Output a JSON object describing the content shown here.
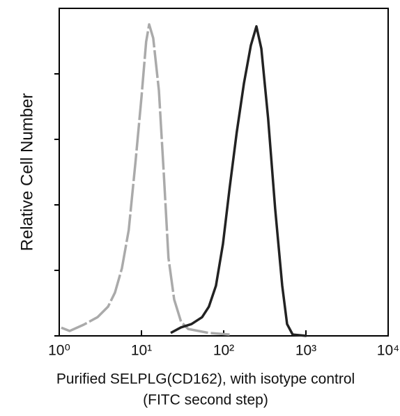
{
  "chart_data": {
    "type": "line",
    "log_x": true,
    "ylabel": "Relative Cell Number",
    "xlabel": [
      "Purified SELPLG(CD162), with isotype control",
      "(FITC second step)"
    ],
    "xlim": [
      1,
      10000
    ],
    "xticks": [
      {
        "value": 1,
        "label": "10⁰"
      },
      {
        "value": 10,
        "label": "10¹"
      },
      {
        "value": 100,
        "label": "10²"
      },
      {
        "value": 1000,
        "label": "10³"
      },
      {
        "value": 10000,
        "label": "10⁴"
      }
    ],
    "ylim": [
      0,
      100
    ],
    "yticks": [
      0,
      20,
      40,
      60,
      80
    ],
    "series": [
      {
        "color": "#aaaaaa",
        "dashed": true,
        "x": [
          1.06,
          1.34,
          1.98,
          2.92,
          3.92,
          4.76,
          5.78,
          7.0,
          8.5,
          10,
          11.4,
          12.4,
          13.9,
          16.3,
          18.7,
          21.3,
          25,
          30.3,
          37,
          66,
          118
        ],
        "values": [
          2.5,
          1.5,
          3.4,
          5.7,
          8.9,
          13.2,
          20.6,
          32.3,
          53.6,
          72.8,
          89.8,
          95.1,
          90.9,
          74.9,
          49.4,
          23.8,
          11.1,
          4.3,
          2.1,
          0.9,
          0.4
        ]
      },
      {
        "color": "#222222",
        "dashed": false,
        "x": [
          22.7,
          30.3,
          40.6,
          54.6,
          66,
          80.5,
          98,
          118,
          144,
          176,
          214,
          250,
          287,
          347,
          423,
          515,
          590,
          690,
          1015
        ],
        "values": [
          0.9,
          2.6,
          3.6,
          5.7,
          8.9,
          15.3,
          28.1,
          45.1,
          62.1,
          77,
          88.7,
          94.5,
          87.7,
          66.4,
          38.7,
          15.3,
          3.6,
          0.4,
          0
        ]
      }
    ]
  }
}
